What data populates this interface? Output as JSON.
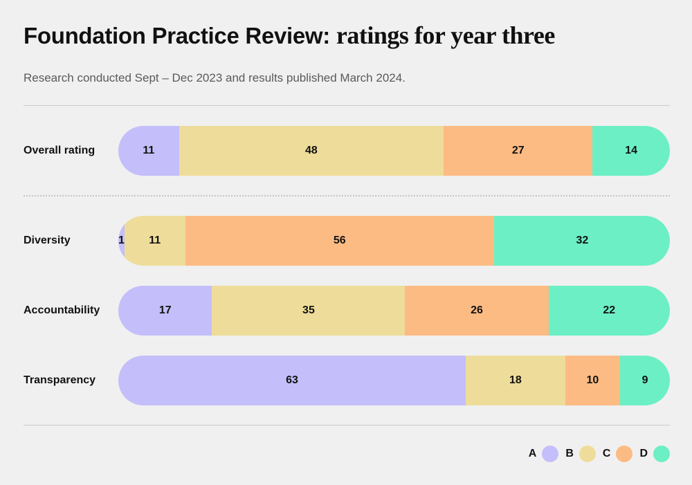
{
  "header": {
    "title_part1": "Foundation Practice Review:",
    "title_part2": "ratings for year three",
    "subtitle": "Research conducted Sept – Dec 2023 and results published March 2024."
  },
  "colors": {
    "A": "#c4befa",
    "B": "#eedd9a",
    "C": "#fdbb84",
    "D": "#6cefc4"
  },
  "chart_data": {
    "type": "bar",
    "orientation": "horizontal",
    "stacked": true,
    "title": "Foundation Practice Review: ratings for year three",
    "subtitle": "Research conducted Sept – Dec 2023 and results published March 2024.",
    "categories": [
      "Overall rating",
      "Diversity",
      "Accountability",
      "Transparency"
    ],
    "series": [
      {
        "name": "A",
        "values": [
          11,
          1,
          17,
          63
        ]
      },
      {
        "name": "B",
        "values": [
          48,
          11,
          35,
          18
        ]
      },
      {
        "name": "C",
        "values": [
          27,
          56,
          26,
          10
        ]
      },
      {
        "name": "D",
        "values": [
          14,
          32,
          22,
          9
        ]
      }
    ],
    "legend_position": "bottom-right",
    "grid": false
  }
}
